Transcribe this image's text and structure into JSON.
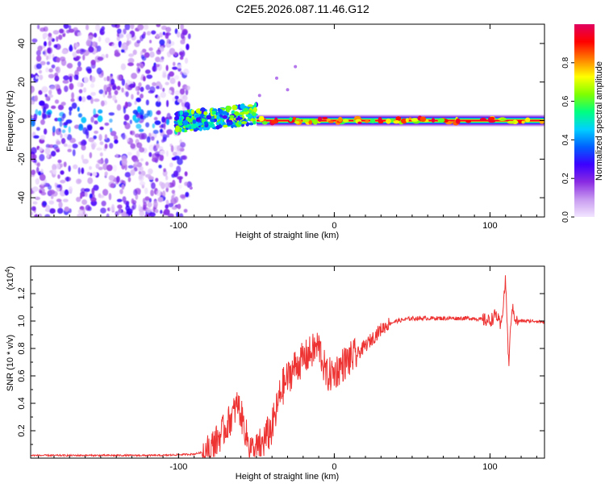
{
  "title": "C2E5.2026.087.11.46.G12",
  "chart_data": [
    {
      "type": "heatmap",
      "title": "C2E5.2026.087.11.46.G12",
      "xlabel": "Height of straight line (km)",
      "ylabel": "Frequency (Hz)",
      "xlim": [
        -195,
        135
      ],
      "ylim": [
        -50,
        50
      ],
      "x_ticks": [
        -100,
        0,
        100
      ],
      "y_ticks": [
        -40,
        -20,
        0,
        20,
        40
      ],
      "colorbar": {
        "label": "Normalized spectral amplitude",
        "range": [
          0,
          1
        ],
        "ticks": [
          0.0,
          0.2,
          0.4,
          0.6,
          0.8
        ],
        "colors": [
          "#f2e6ff",
          "#c89bf0",
          "#8a2be2",
          "#3b00ff",
          "#0060ff",
          "#00d0ff",
          "#00ff80",
          "#80ff00",
          "#ffff00",
          "#ff8000",
          "#ff0000",
          "#e00060"
        ]
      },
      "regions": [
        {
          "name": "noise",
          "x_range": [
            -195,
            -93
          ],
          "freq_range": [
            -50,
            50
          ],
          "amplitude": 0.15
        },
        {
          "name": "cluster",
          "x_range": [
            -102,
            -50
          ],
          "freq_center": 3,
          "freq_halfwidth": 5,
          "amplitude": 0.45
        },
        {
          "name": "tone",
          "x_range": [
            -50,
            135
          ],
          "freq_center": 0,
          "amplitude": 0.9
        }
      ]
    },
    {
      "type": "line",
      "xlabel": "Height of straight line (km)",
      "ylabel": "SNR (10 * v/v)",
      "y_scale_label": "(x10",
      "y_scale_exp": "4",
      "xlim": [
        -195,
        135
      ],
      "ylim": [
        0,
        1.4
      ],
      "x_ticks": [
        -100,
        0,
        100
      ],
      "y_ticks": [
        0.2,
        0.4,
        0.6,
        0.8,
        1.0,
        1.2
      ],
      "color": "#ee3333",
      "series": [
        {
          "name": "SNR",
          "x": [
            -195,
            -170,
            -140,
            -110,
            -90,
            -82,
            -76,
            -70,
            -65,
            -62,
            -58,
            -55,
            -52,
            -48,
            -44,
            -40,
            -37,
            -34,
            -30,
            -26,
            -22,
            -18,
            -14,
            -10,
            -5,
            0,
            5,
            10,
            15,
            20,
            25,
            30,
            35,
            40,
            50,
            60,
            70,
            80,
            90,
            100,
            104,
            107,
            110,
            112,
            114,
            117,
            120,
            130,
            135
          ],
          "values": [
            0.02,
            0.02,
            0.02,
            0.02,
            0.03,
            0.05,
            0.12,
            0.22,
            0.32,
            0.4,
            0.24,
            0.1,
            0.05,
            0.08,
            0.15,
            0.22,
            0.35,
            0.5,
            0.58,
            0.66,
            0.7,
            0.74,
            0.78,
            0.82,
            0.6,
            0.62,
            0.68,
            0.72,
            0.76,
            0.82,
            0.88,
            0.94,
            0.98,
            1.0,
            1.02,
            1.02,
            1.02,
            1.02,
            1.02,
            1.0,
            1.05,
            0.95,
            1.3,
            0.68,
            1.1,
            1.0,
            1.0,
            1.0,
            0.99
          ]
        }
      ]
    }
  ]
}
